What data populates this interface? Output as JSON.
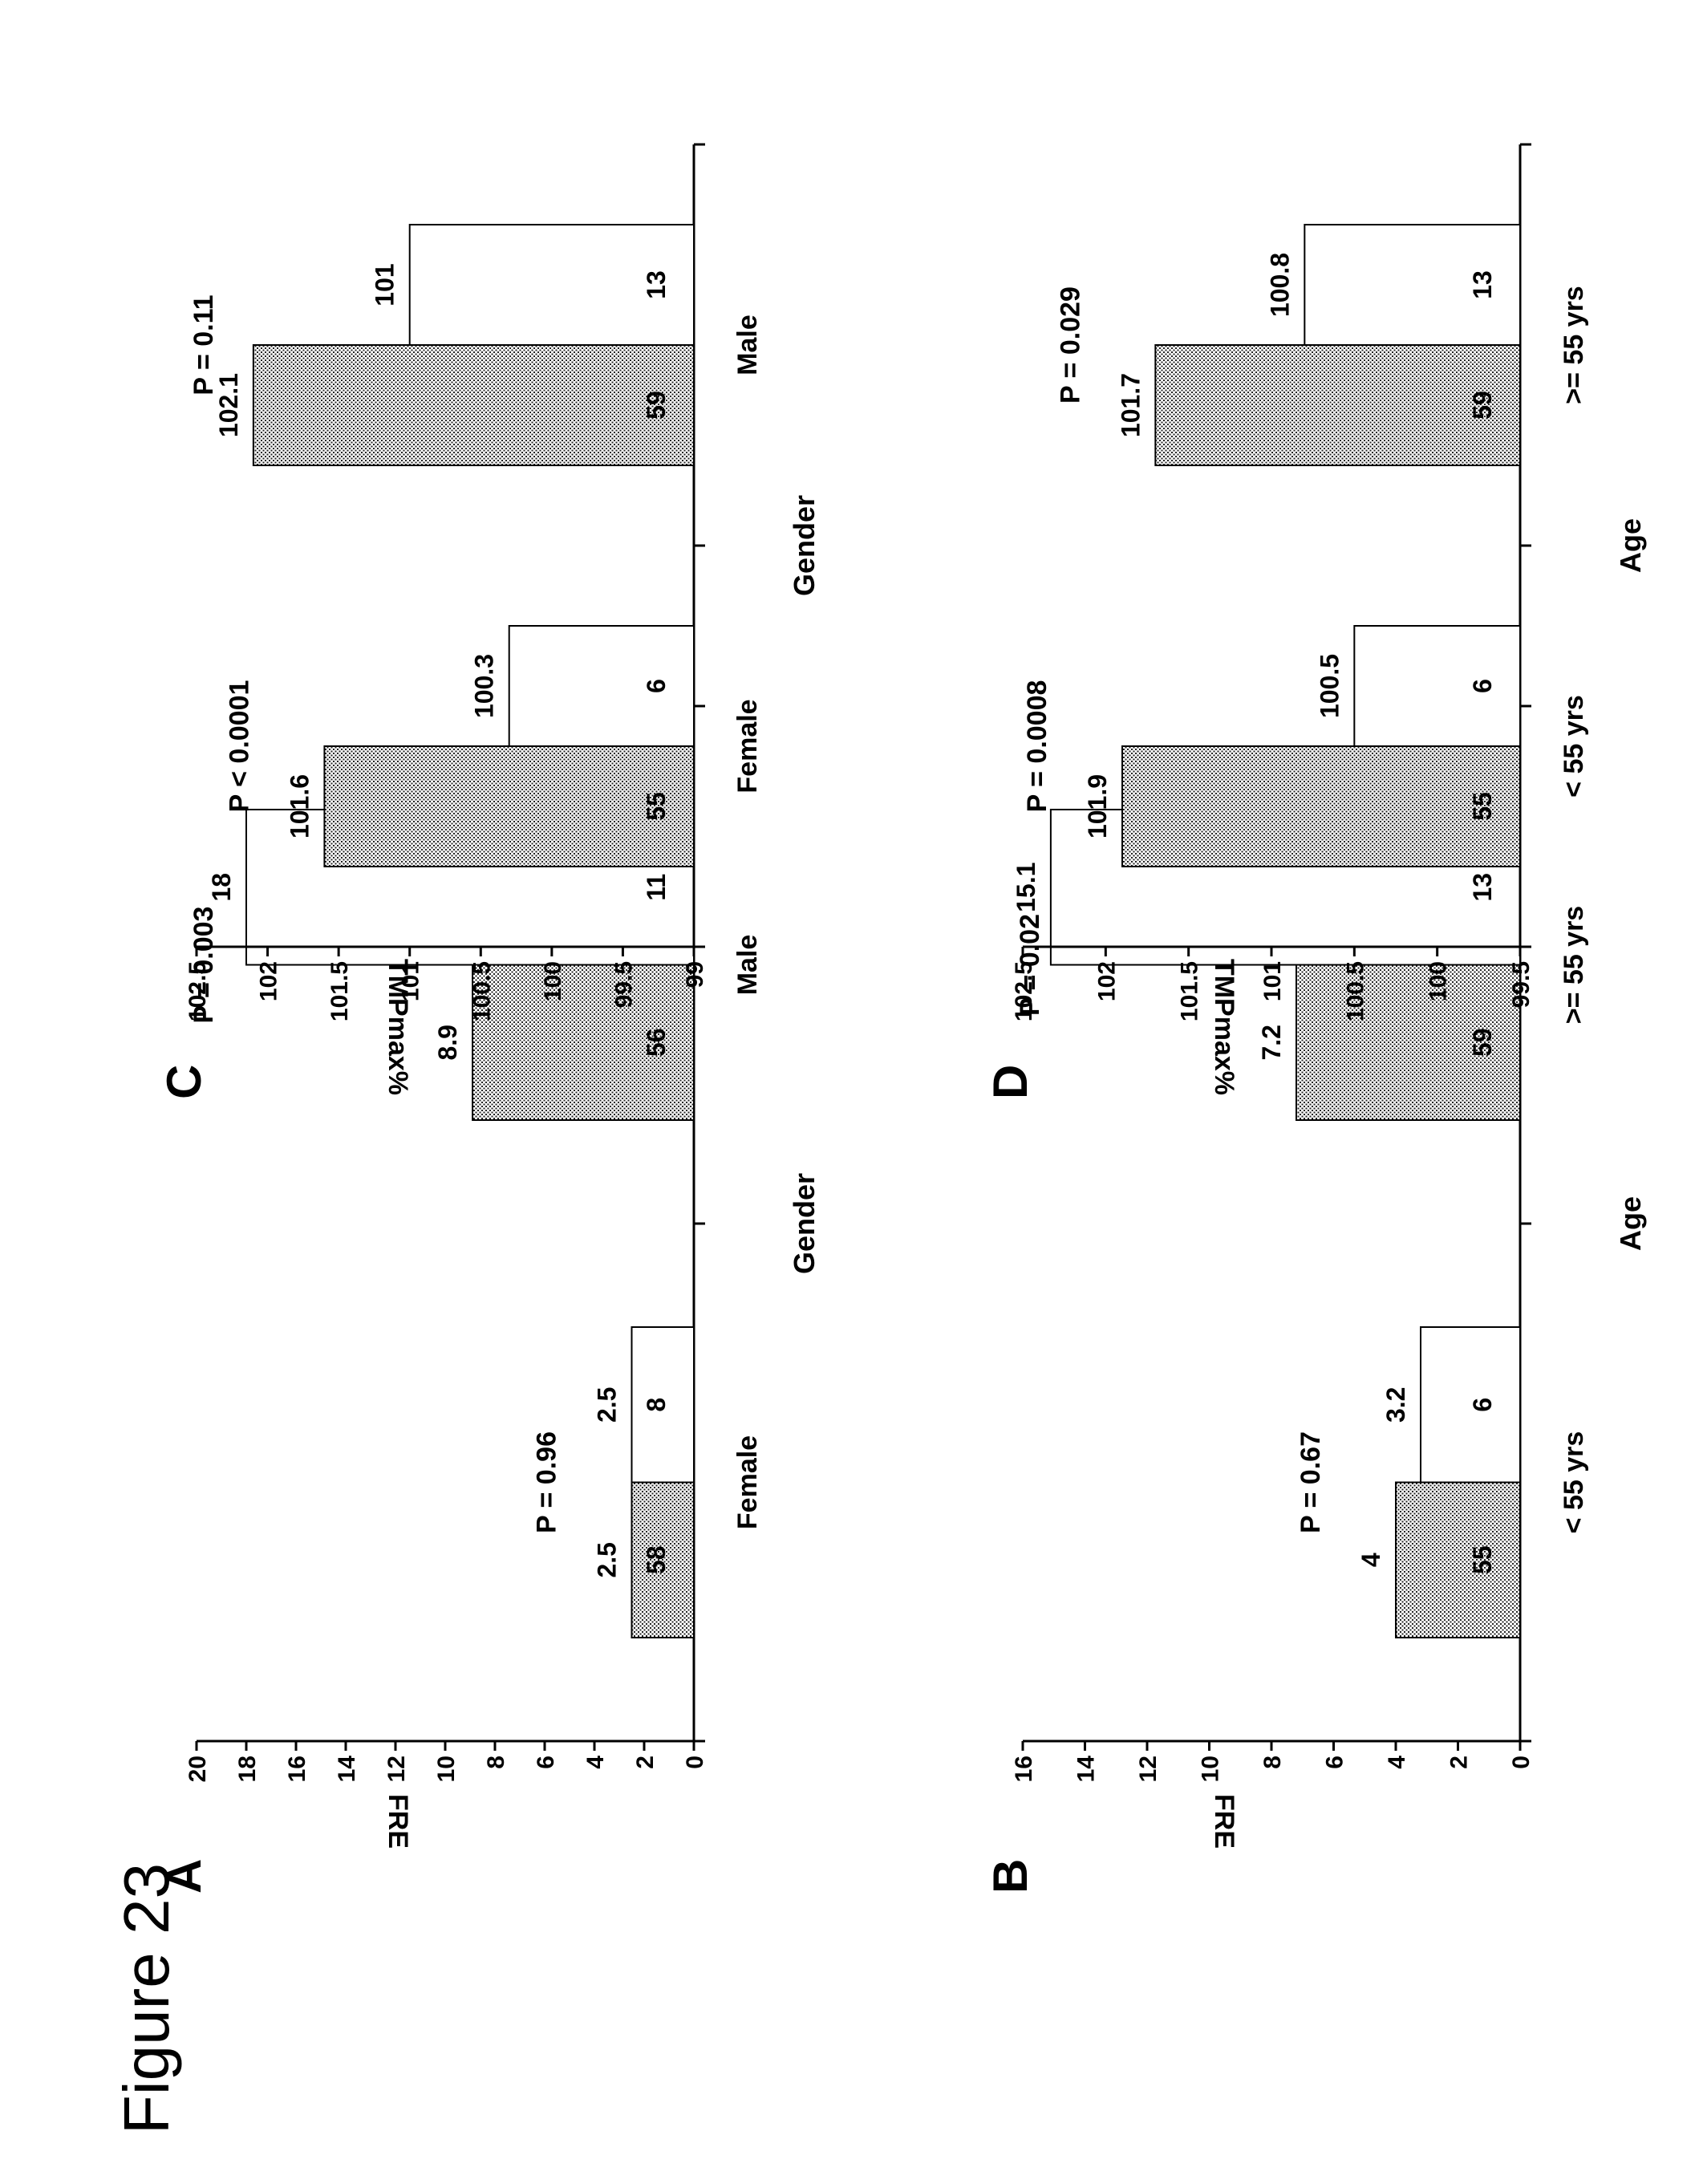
{
  "figure_title": "Figure 23",
  "colors": {
    "filled_bar": "#d6d6d6",
    "open_bar": "#ffffff",
    "stroke": "#000000"
  },
  "chart_data": [
    {
      "panel": "A",
      "type": "bar",
      "ylabel": "FRE",
      "xlabel": "Gender",
      "ylim": [
        0,
        20
      ],
      "yticks": [
        "0",
        "2",
        "4",
        "6",
        "8",
        "10",
        "12",
        "14",
        "16",
        "18",
        "20"
      ],
      "groups": [
        {
          "label": "Female",
          "p_value": "P = 0.96",
          "bars": [
            {
              "value": 2.5,
              "value_label": "2.5",
              "n": "58",
              "fill": "dotted"
            },
            {
              "value": 2.5,
              "value_label": "2.5",
              "n": "8",
              "fill": "open"
            }
          ]
        },
        {
          "label": "Male",
          "p_value": "P = 0.003",
          "bars": [
            {
              "value": 8.9,
              "value_label": "8.9",
              "n": "56",
              "fill": "dotted"
            },
            {
              "value": 18,
              "value_label": "18",
              "n": "11",
              "fill": "open"
            }
          ]
        }
      ]
    },
    {
      "panel": "B",
      "type": "bar",
      "ylabel": "FRE",
      "xlabel": "Age",
      "ylim": [
        0,
        16
      ],
      "yticks": [
        "0",
        "2",
        "4",
        "6",
        "8",
        "10",
        "12",
        "14",
        "16"
      ],
      "groups": [
        {
          "label": "< 55 yrs",
          "p_value": "P = 0.67",
          "bars": [
            {
              "value": 4,
              "value_label": "4",
              "n": "55",
              "fill": "dotted"
            },
            {
              "value": 3.2,
              "value_label": "3.2",
              "n": "6",
              "fill": "open"
            }
          ]
        },
        {
          "label": ">= 55 yrs",
          "p_value": "P = 0.02",
          "bars": [
            {
              "value": 7.2,
              "value_label": "7.2",
              "n": "59",
              "fill": "dotted"
            },
            {
              "value": 15.1,
              "value_label": "15.1",
              "n": "13",
              "fill": "open"
            }
          ]
        }
      ]
    },
    {
      "panel": "C",
      "type": "bar",
      "ylabel": "TMPmax%",
      "xlabel": "Gender",
      "ylim": [
        99,
        102.5
      ],
      "yticks": [
        "99",
        "99.5",
        "100",
        "100.5",
        "101",
        "101.5",
        "102",
        "102.5"
      ],
      "groups": [
        {
          "label": "Female",
          "p_value": "P < 0.0001",
          "bars": [
            {
              "value": 101.6,
              "value_label": "101.6",
              "n": "55",
              "fill": "dotted"
            },
            {
              "value": 100.3,
              "value_label": "100.3",
              "n": "6",
              "fill": "open"
            }
          ]
        },
        {
          "label": "Male",
          "p_value": "P = 0.11",
          "bars": [
            {
              "value": 102.1,
              "value_label": "102.1",
              "n": "59",
              "fill": "dotted"
            },
            {
              "value": 101,
              "value_label": "101",
              "n": "13",
              "fill": "open"
            }
          ]
        }
      ]
    },
    {
      "panel": "D",
      "type": "bar",
      "ylabel": "TMPmax%",
      "xlabel": "Age",
      "ylim": [
        99.5,
        102.5
      ],
      "yticks": [
        "99.5",
        "100",
        "100.5",
        "101",
        "101.5",
        "102",
        "102.5"
      ],
      "groups": [
        {
          "label": "< 55 yrs",
          "p_value": "P = 0.0008",
          "bars": [
            {
              "value": 101.9,
              "value_label": "101.9",
              "n": "55",
              "fill": "dotted"
            },
            {
              "value": 100.5,
              "value_label": "100.5",
              "n": "6",
              "fill": "open"
            }
          ]
        },
        {
          "label": ">= 55 yrs",
          "p_value": "P = 0.029",
          "bars": [
            {
              "value": 101.7,
              "value_label": "101.7",
              "n": "59",
              "fill": "dotted"
            },
            {
              "value": 100.8,
              "value_label": "100.8",
              "n": "13",
              "fill": "open"
            }
          ]
        }
      ]
    }
  ]
}
